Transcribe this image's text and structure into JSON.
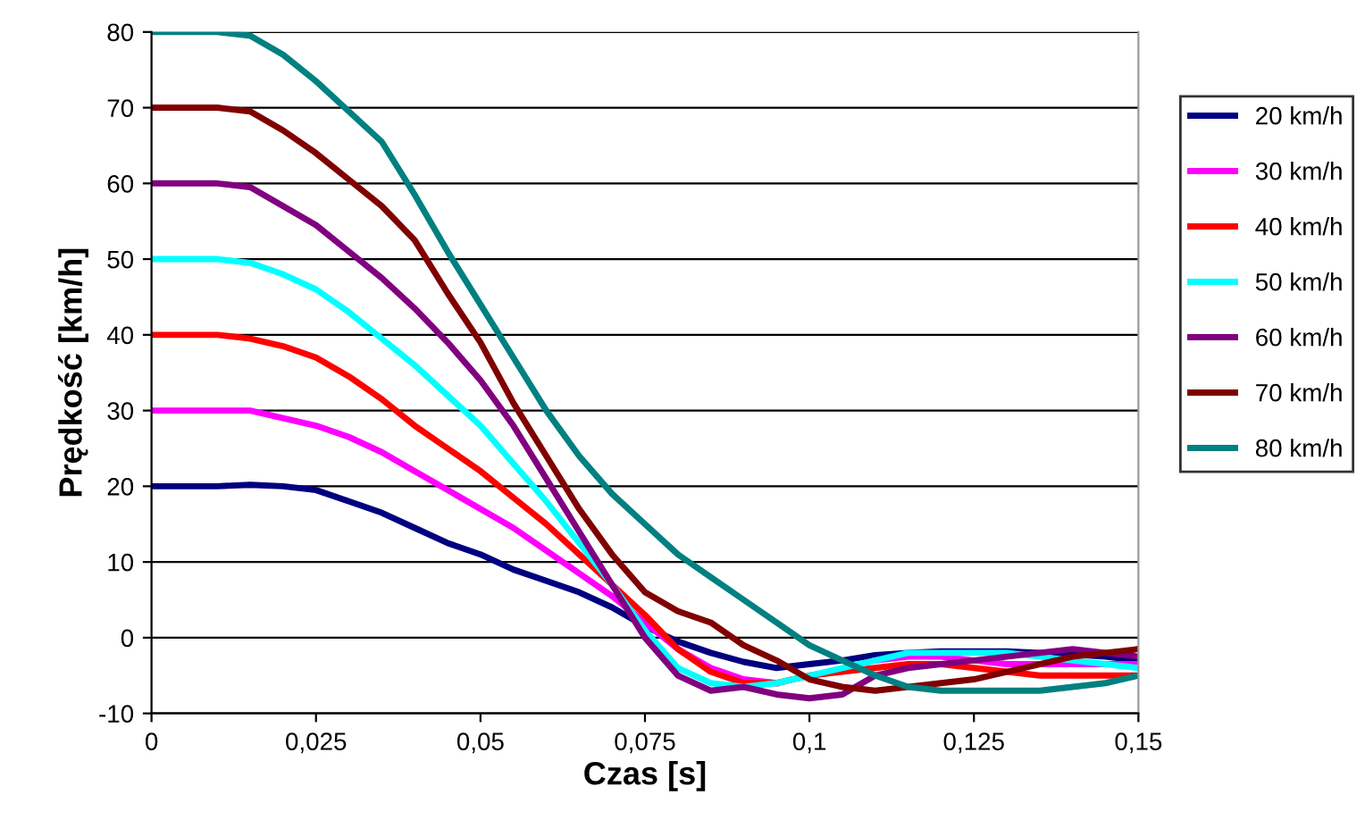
{
  "chart_data": {
    "type": "line",
    "xlabel": "Czas [s]",
    "ylabel": "Prędkość [km/h]",
    "x": [
      0,
      0.005,
      0.01,
      0.015,
      0.02,
      0.025,
      0.03,
      0.035,
      0.04,
      0.045,
      0.05,
      0.055,
      0.06,
      0.065,
      0.07,
      0.075,
      0.08,
      0.085,
      0.09,
      0.095,
      0.1,
      0.105,
      0.11,
      0.115,
      0.12,
      0.125,
      0.13,
      0.135,
      0.14,
      0.145,
      0.15
    ],
    "series": [
      {
        "name": "20 km/h",
        "color": "#000080",
        "values": [
          20,
          20,
          20,
          20.2,
          20,
          19.5,
          18,
          16.5,
          14.5,
          12.5,
          11,
          9,
          7.5,
          6,
          4,
          1.5,
          -0.5,
          -2,
          -3.2,
          -4,
          -3.5,
          -3,
          -2.3,
          -2,
          -1.8,
          -1.8,
          -1.8,
          -2,
          -2.2,
          -2.5,
          -3
        ]
      },
      {
        "name": "30 km/h",
        "color": "#ff00ff",
        "values": [
          30,
          30,
          30,
          30,
          29,
          28,
          26.5,
          24.5,
          22,
          19.5,
          17,
          14.5,
          11.5,
          8.5,
          5.5,
          2,
          -1.5,
          -4,
          -5.5,
          -6,
          null,
          null,
          -3,
          -2.5,
          -2.5,
          -3,
          -3.5,
          -3.5,
          -3.5,
          -3.5,
          -3.5
        ]
      },
      {
        "name": "40 km/h",
        "color": "#ff0000",
        "values": [
          40,
          40,
          40,
          39.5,
          38.5,
          37,
          34.5,
          31.5,
          28,
          25,
          22,
          18.5,
          15,
          11,
          7,
          3,
          -1.5,
          -4.5,
          -6,
          -6,
          -5,
          -4.5,
          -4,
          -3.5,
          -3.5,
          -4,
          -4.5,
          -5,
          -5,
          -5,
          -5
        ]
      },
      {
        "name": "50 km/h",
        "color": "#00ffff",
        "values": [
          50,
          50,
          50,
          49.5,
          48,
          46,
          43,
          39.5,
          36,
          32,
          28,
          23,
          18,
          12.5,
          7,
          1,
          -4,
          -6,
          -6.5,
          -6,
          -5,
          -4,
          -3,
          -2,
          -2,
          -2,
          -2,
          -2.5,
          -3,
          -3.5,
          -4
        ]
      },
      {
        "name": "60 km/h",
        "color": "#800080",
        "values": [
          60,
          60,
          60,
          59.5,
          57,
          54.5,
          51,
          47.5,
          43.5,
          39,
          34,
          28,
          21,
          14,
          7,
          0,
          -5,
          -7,
          -6.5,
          -7.5,
          -8,
          -7.5,
          -5,
          -4,
          -3.5,
          -3,
          -2.5,
          -2,
          -1.5,
          -2,
          -2.5
        ]
      },
      {
        "name": "70 km/h",
        "color": "#800000",
        "values": [
          70,
          70,
          70,
          69.5,
          67,
          64,
          60.5,
          57,
          52.5,
          45.5,
          39,
          31,
          24,
          17,
          11,
          6,
          3.5,
          2,
          -1,
          -3,
          -5.5,
          -6.5,
          -7,
          -6.5,
          -6,
          -5.5,
          -4.5,
          -3.5,
          -2.5,
          -2,
          -1.5
        ]
      },
      {
        "name": "80 km/h",
        "color": "#008080",
        "values": [
          80,
          80,
          80,
          79.5,
          77,
          73.5,
          69.5,
          65.5,
          58.5,
          51,
          44,
          37,
          30,
          24,
          19,
          15,
          11,
          8,
          5,
          2,
          -1,
          -3,
          -5,
          -6.5,
          -7,
          -7,
          -7,
          -7,
          -6.5,
          -6,
          -5
        ]
      }
    ],
    "xlim": [
      0,
      0.15
    ],
    "ylim": [
      -10,
      80
    ],
    "xticks": [
      {
        "value": 0,
        "label": "0"
      },
      {
        "value": 0.025,
        "label": "0,025"
      },
      {
        "value": 0.05,
        "label": "0,05"
      },
      {
        "value": 0.075,
        "label": "0,075"
      },
      {
        "value": 0.1,
        "label": "0,1"
      },
      {
        "value": 0.125,
        "label": "0,125"
      },
      {
        "value": 0.15,
        "label": "0,15"
      }
    ],
    "yticks": [
      -10,
      0,
      10,
      20,
      30,
      40,
      50,
      60,
      70,
      80
    ],
    "grid": "y",
    "legend": "right",
    "line_style": "solid",
    "marker": "none"
  }
}
